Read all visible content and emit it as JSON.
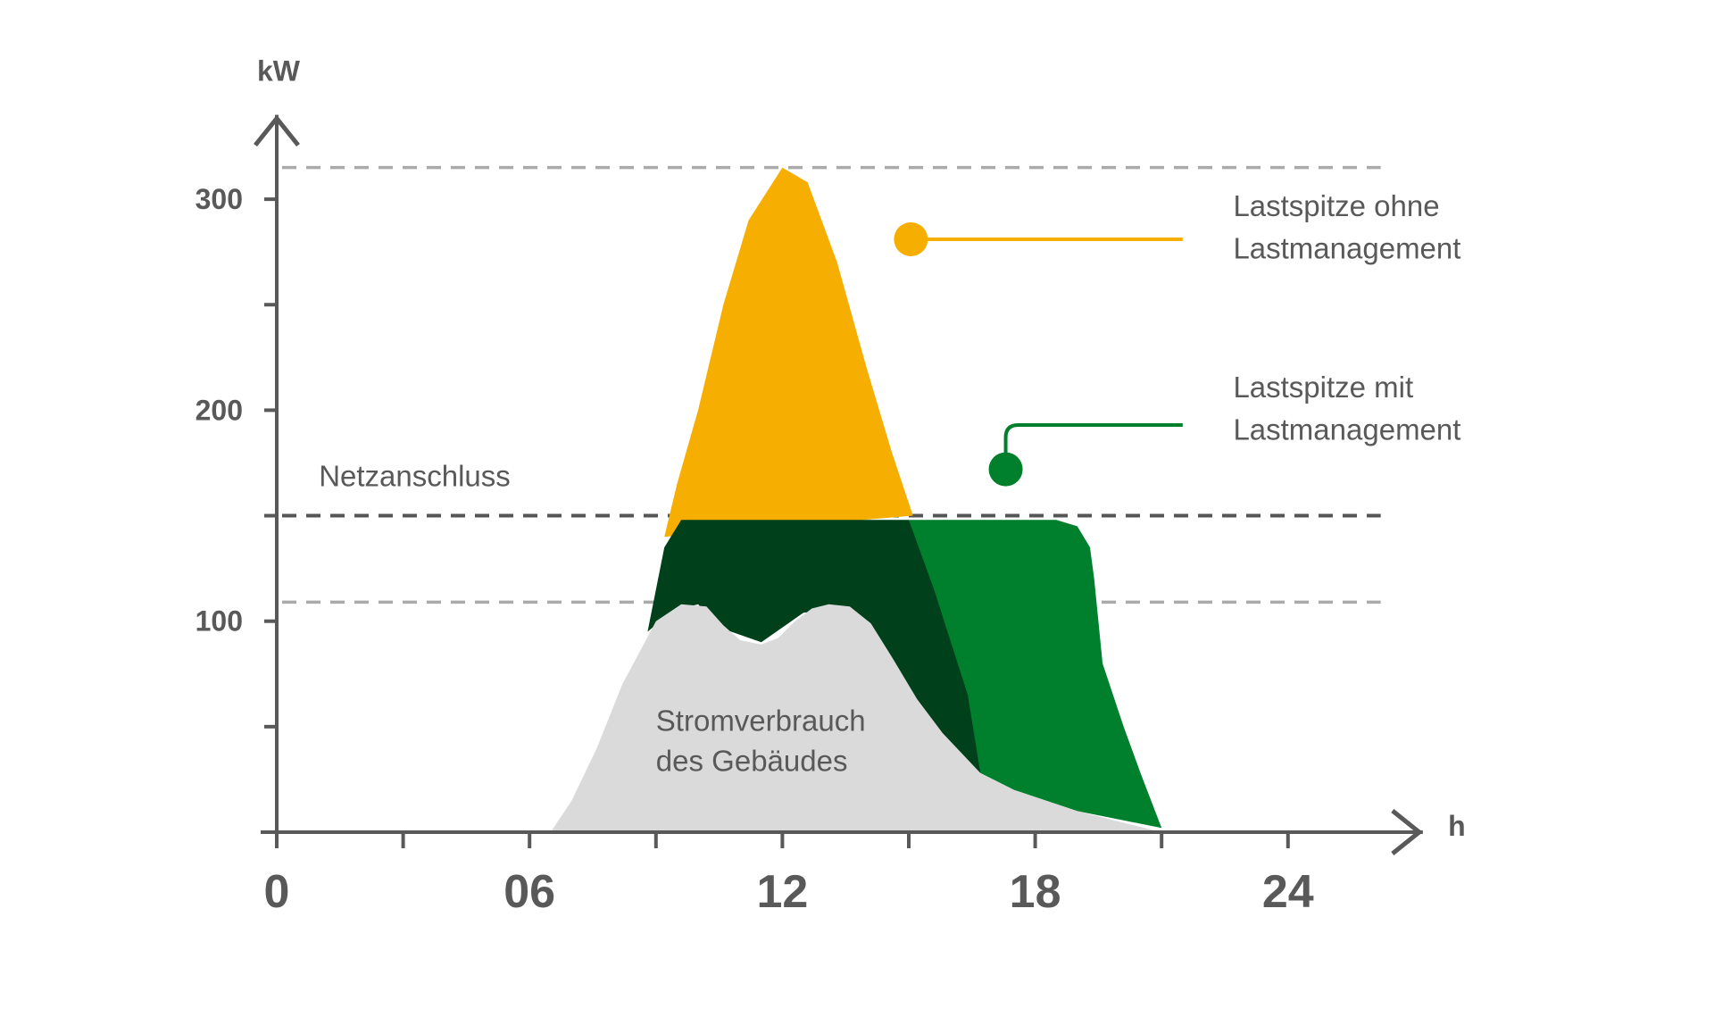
{
  "chart_data": {
    "type": "area",
    "title": "",
    "xlabel": "h",
    "ylabel": "kW",
    "xlim": [
      0,
      27
    ],
    "ylim": [
      0,
      330
    ],
    "x_ticks": [
      0,
      6,
      12,
      18,
      24
    ],
    "x_tick_labels": [
      "0",
      "06",
      "12",
      "18",
      "24"
    ],
    "x_minor_ticks": [
      3,
      9,
      15,
      21
    ],
    "y_ticks": [
      100,
      200,
      300
    ],
    "y_tick_labels": [
      "100",
      "200",
      "300"
    ],
    "y_minor_ticks": [
      50,
      150,
      250
    ],
    "grid": false,
    "reference_lines": [
      {
        "value": 315,
        "style": "dashed",
        "color": "#aaaaaa",
        "label": ""
      },
      {
        "value": 150,
        "style": "dashed",
        "color": "#555555",
        "label": "Netzanschluss"
      },
      {
        "value": 109,
        "style": "dashed",
        "color": "#aaaaaa",
        "label": ""
      }
    ],
    "series": [
      {
        "name": "Lastspitze ohne Lastmanagement",
        "color": "#F6AE00",
        "points": [
          [
            9.2,
            140
          ],
          [
            9.5,
            165
          ],
          [
            10,
            200
          ],
          [
            10.6,
            250
          ],
          [
            11.2,
            290
          ],
          [
            12,
            315
          ],
          [
            12.6,
            308
          ],
          [
            13.3,
            270
          ],
          [
            14,
            220
          ],
          [
            14.6,
            180
          ],
          [
            15.1,
            150
          ]
        ]
      },
      {
        "name": "Lastspitze mit Lastmanagement",
        "color": "#007F2D",
        "points": [
          [
            15,
            148
          ],
          [
            18.5,
            148
          ],
          [
            19,
            145
          ],
          [
            19.3,
            135
          ],
          [
            19.4,
            120
          ],
          [
            19.6,
            80
          ],
          [
            20.1,
            50
          ],
          [
            20.5,
            28
          ],
          [
            21.0,
            2
          ],
          [
            19,
            10
          ],
          [
            17.5,
            20
          ],
          [
            16.7,
            28
          ]
        ]
      },
      {
        "name": "",
        "color": "#00401A",
        "points": [
          [
            8.8,
            95
          ],
          [
            9.2,
            135
          ],
          [
            9.6,
            148
          ],
          [
            15,
            148
          ],
          [
            15.6,
            115
          ],
          [
            16.4,
            65
          ],
          [
            16.7,
            28
          ],
          [
            15.5,
            45
          ],
          [
            14,
            85
          ],
          [
            13.4,
            106
          ],
          [
            12.5,
            104
          ],
          [
            11.5,
            90
          ],
          [
            10.5,
            97
          ],
          [
            10,
            108
          ],
          [
            9.4,
            105
          ]
        ]
      },
      {
        "name": "Stromverbrauch des Gebäudes",
        "color": "#DADADA",
        "points": [
          [
            6.5,
            0
          ],
          [
            7,
            15
          ],
          [
            7.6,
            40
          ],
          [
            8.2,
            70
          ],
          [
            9.0,
            100
          ],
          [
            9.6,
            108
          ],
          [
            10.2,
            107
          ],
          [
            10.6,
            98
          ],
          [
            11.0,
            91
          ],
          [
            11.5,
            89
          ],
          [
            11.9,
            92
          ],
          [
            12.3,
            100
          ],
          [
            12.7,
            106
          ],
          [
            13.1,
            108
          ],
          [
            13.6,
            107
          ],
          [
            14.1,
            99
          ],
          [
            14.6,
            83
          ],
          [
            15.2,
            63
          ],
          [
            15.8,
            47
          ],
          [
            16.7,
            28
          ],
          [
            17.5,
            20
          ],
          [
            19,
            10
          ],
          [
            20,
            5
          ],
          [
            21.0,
            0
          ]
        ]
      }
    ],
    "annotations": [
      {
        "line1": "Lastspitze ohne",
        "line2": "Lastmanagement",
        "color": "#F6AE00"
      },
      {
        "line1": "Lastspitze mit",
        "line2": "Lastmanagement",
        "color": "#007F2D"
      },
      {
        "line1": "Stromverbrauch",
        "line2": "des Gebäudes",
        "color": "#595959"
      },
      {
        "line1": "Netzanschluss",
        "line2": "",
        "color": "#595959"
      }
    ]
  }
}
